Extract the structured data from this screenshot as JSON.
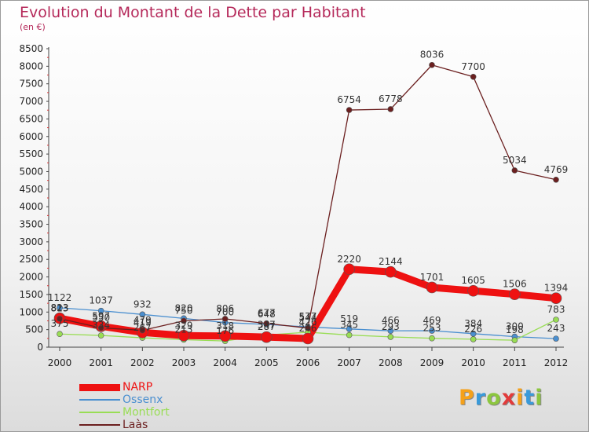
{
  "title": "Evolution du Montant de la Dette par Habitant",
  "unit_label": "(en €)",
  "brand": {
    "text": "Proxiti",
    "letter_colors": [
      "#f5a11a",
      "#3a9ad9",
      "#8cc63f",
      "#e23b3b",
      "#f5a11a",
      "#3a9ad9",
      "#8cc63f"
    ]
  },
  "chart_data": {
    "type": "line",
    "title": "Evolution du Montant de la Dette par Habitant",
    "subtitle": "(en €)",
    "x": [
      "2000",
      "2001",
      "2002",
      "2003",
      "2004",
      "2005",
      "2006",
      "2007",
      "2008",
      "2009",
      "2010",
      "2011",
      "2012"
    ],
    "yticks": [
      "0",
      "500",
      "1000",
      "1500",
      "2000",
      "2500",
      "3000",
      "3500",
      "4000",
      "4500",
      "5000",
      "5500",
      "6000",
      "6500",
      "7000",
      "7500",
      "8000",
      "8500"
    ],
    "ylim": [
      0,
      8500
    ],
    "grid": false,
    "legend_position": "bottom-left",
    "series": [
      {
        "name": "NARP",
        "color": "#ee1111",
        "values": [
          823,
          597,
          419,
          329,
          318,
          287,
          246,
          2220,
          2144,
          1701,
          1605,
          1506,
          1394
        ],
        "labels": [
          "823",
          "597",
          "419",
          "329",
          "318",
          "287",
          "246",
          "2220",
          "2144",
          "1701",
          "1605",
          "1506",
          "1394"
        ]
      },
      {
        "name": "Ossenx",
        "color": "#4a8fd0",
        "values": [
          1122,
          1037,
          932,
          820,
          700,
          648,
          577,
          519,
          466,
          469,
          384,
          300,
          243
        ],
        "labels": [
          "1122",
          "1037",
          "932",
          "820",
          "700",
          "648",
          "577",
          "519",
          "466",
          "469",
          "384",
          "300",
          "243"
        ]
      },
      {
        "name": "Montfort",
        "color": "#99dd55",
        "values": [
          375,
          334,
          267,
          213,
          176,
          347,
          426,
          345,
          293,
          253,
          226,
          198,
          783
        ],
        "labels": [
          "375",
          "334",
          "267",
          "213",
          "176",
          "347",
          "426",
          "345",
          "293",
          "253",
          "226",
          "198",
          "783"
        ]
      },
      {
        "name": "Laàs",
        "color": "#6b1f1f",
        "values": [
          813,
          550,
          479,
          750,
          806,
          677,
          544,
          6754,
          6778,
          8036,
          7700,
          5034,
          4769
        ],
        "labels": [
          "813",
          "550",
          "479",
          "750",
          "806",
          "677",
          "544",
          "6754",
          "6778",
          "8036",
          "7700",
          "5034",
          "4769"
        ]
      }
    ]
  }
}
